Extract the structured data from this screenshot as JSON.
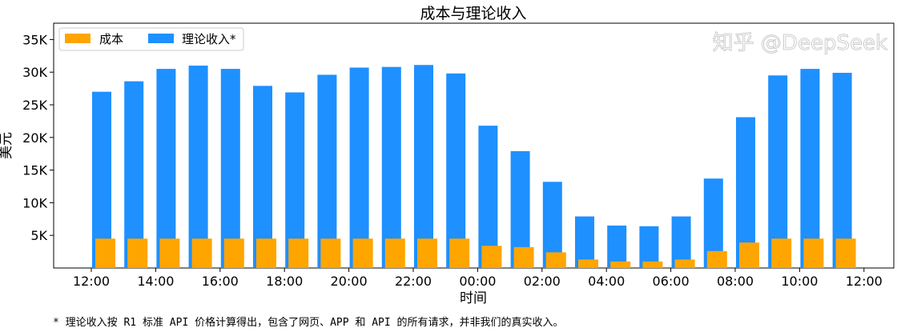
{
  "chart_data": {
    "type": "bar",
    "title": "成本与理论收入",
    "xlabel": "时间",
    "ylabel": "美元",
    "categories": [
      "12:00",
      "13:00",
      "14:00",
      "15:00",
      "16:00",
      "17:00",
      "18:00",
      "19:00",
      "20:00",
      "21:00",
      "22:00",
      "23:00",
      "00:00",
      "01:00",
      "02:00",
      "03:00",
      "04:00",
      "05:00",
      "06:00",
      "07:00",
      "08:00",
      "09:00",
      "10:00",
      "11:00"
    ],
    "x_tick_labels": [
      "12:00",
      "14:00",
      "16:00",
      "18:00",
      "20:00",
      "22:00",
      "00:00",
      "02:00",
      "04:00",
      "06:00",
      "08:00",
      "10:00",
      "12:00"
    ],
    "y_tick_labels": [
      "5K",
      "10K",
      "15K",
      "20K",
      "25K",
      "30K",
      "35K"
    ],
    "y_ticks": [
      5000,
      10000,
      15000,
      20000,
      25000,
      30000,
      35000
    ],
    "ylim": [
      0,
      37500
    ],
    "series": [
      {
        "name": "成本",
        "color": "#FFA500",
        "values": [
          4500,
          4500,
          4500,
          4500,
          4500,
          4500,
          4500,
          4500,
          4500,
          4500,
          4500,
          4500,
          3400,
          3200,
          2400,
          1300,
          1000,
          1000,
          1300,
          2600,
          3900,
          4500,
          4500,
          4500
        ]
      },
      {
        "name": "理论收入*",
        "color": "#1E90FF",
        "values": [
          27000,
          28600,
          30500,
          31000,
          30500,
          27900,
          26900,
          29600,
          30700,
          30800,
          31100,
          29800,
          21800,
          17900,
          13200,
          7900,
          6500,
          6400,
          7900,
          13700,
          23100,
          29500,
          30500,
          29900
        ]
      }
    ],
    "legend_position": "top-left",
    "grid": false
  },
  "footnote": "* 理论收入按 R1 标准 API 价格计算得出，包含了网页、APP 和 API 的所有请求，并非我们的真实收入。",
  "watermark": "知乎 @DeepSeek"
}
